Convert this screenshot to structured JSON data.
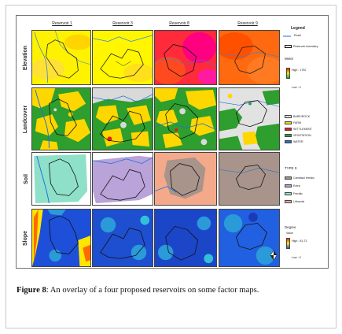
{
  "figure": {
    "columns": [
      "Reservoir 1",
      "Reservoir 3",
      "Reservoir 8",
      "Reservoir 9"
    ],
    "rows": [
      "Elevation",
      "Landcover",
      "Soil",
      "Slope"
    ],
    "legend": {
      "title": "Legend",
      "road": "Road",
      "boundary": "Reservoir boundary",
      "elevation": {
        "title": "Meter",
        "high": "High : 1752",
        "low": "Low : 0",
        "colors": [
          "#ff1a00",
          "#ffe600",
          "#00b050"
        ]
      },
      "landcover": {
        "items": [
          {
            "label": "BARE/ROCK",
            "color": "#d9d9d9"
          },
          {
            "label": "FARM",
            "color": "#ffd700"
          },
          {
            "label": "SETTLEMENT",
            "color": "#e31a1c"
          },
          {
            "label": "VEGETATION",
            "color": "#2e9e2e"
          },
          {
            "label": "WATER",
            "color": "#1f6fe0"
          }
        ]
      },
      "soil": {
        "title": "TYPE S",
        "items": [
          {
            "label": "Cambisol ferralic",
            "color": "#a8948a"
          },
          {
            "label": "Eutric",
            "color": "#b9a3d9"
          },
          {
            "label": "Ferralic",
            "color": "#8fe0c8"
          },
          {
            "label": "Lithosols",
            "color": "#f4a98a"
          }
        ]
      },
      "slope": {
        "title": "Degree",
        "subtitle": "Value",
        "high": "High : 81.73",
        "low": "Low : 0",
        "colors": [
          "#ff2a00",
          "#ffee00",
          "#2255dd"
        ]
      }
    }
  },
  "caption": {
    "label": "Figure 8",
    "text": ": An overlay of a four proposed reservoirs on some factor maps."
  }
}
